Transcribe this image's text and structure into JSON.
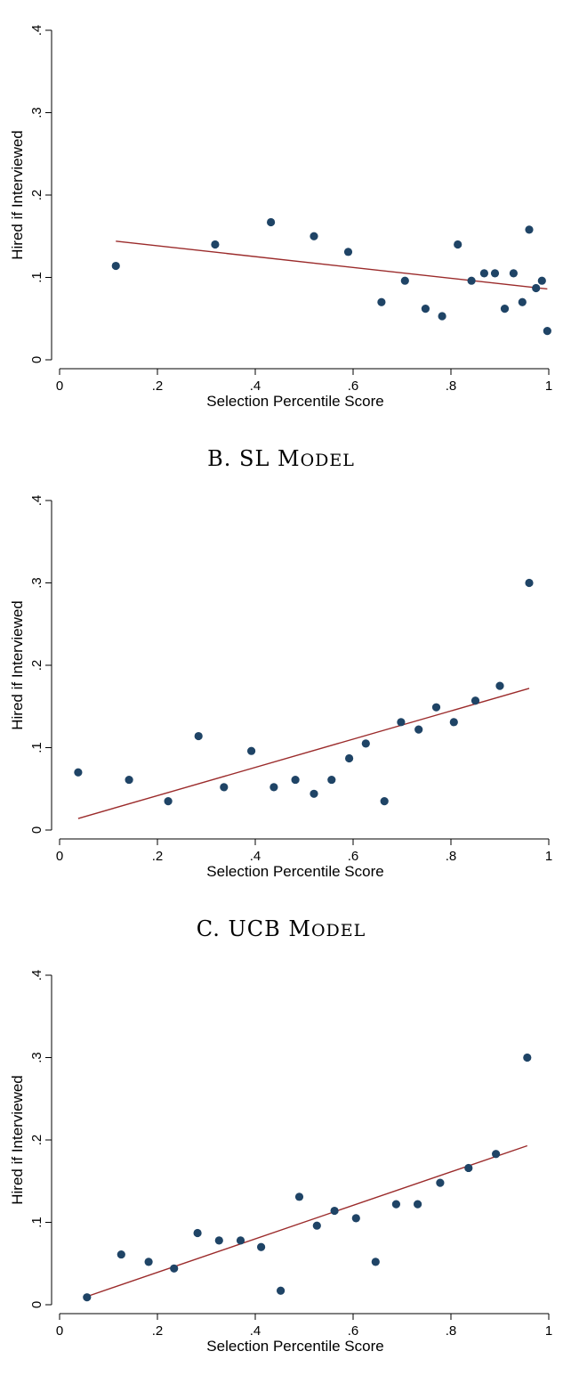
{
  "chart_data": [
    {
      "type": "scatter",
      "title": "",
      "xlabel": "Selection Percentile Score",
      "ylabel": "Hired if Interviewed",
      "xlim": [
        0,
        1
      ],
      "ylim": [
        0,
        0.4
      ],
      "x_ticks": [
        "0",
        ".2",
        ".4",
        ".6",
        ".8",
        "1"
      ],
      "y_ticks": [
        "0",
        ".1",
        ".2",
        ".3",
        ".4"
      ],
      "points": [
        [
          0.115,
          0.114
        ],
        [
          0.318,
          0.14
        ],
        [
          0.432,
          0.167
        ],
        [
          0.52,
          0.15
        ],
        [
          0.59,
          0.131
        ],
        [
          0.658,
          0.07
        ],
        [
          0.706,
          0.096
        ],
        [
          0.748,
          0.062
        ],
        [
          0.782,
          0.053
        ],
        [
          0.814,
          0.14
        ],
        [
          0.842,
          0.096
        ],
        [
          0.868,
          0.105
        ],
        [
          0.89,
          0.105
        ],
        [
          0.91,
          0.062
        ],
        [
          0.928,
          0.105
        ],
        [
          0.946,
          0.07
        ],
        [
          0.96,
          0.158
        ],
        [
          0.974,
          0.087
        ],
        [
          0.986,
          0.096
        ],
        [
          0.997,
          0.035
        ]
      ],
      "fit_line": {
        "x": [
          0.115,
          0.997
        ],
        "y": [
          0.144,
          0.086
        ]
      }
    },
    {
      "type": "scatter",
      "title": "B. SL Model",
      "xlabel": "Selection Percentile Score",
      "ylabel": "Hired if Interviewed",
      "xlim": [
        0,
        1
      ],
      "ylim": [
        0,
        0.4
      ],
      "x_ticks": [
        "0",
        ".2",
        ".4",
        ".6",
        ".8",
        "1"
      ],
      "y_ticks": [
        "0",
        ".1",
        ".2",
        ".3",
        ".4"
      ],
      "points": [
        [
          0.038,
          0.07
        ],
        [
          0.142,
          0.061
        ],
        [
          0.222,
          0.035
        ],
        [
          0.284,
          0.114
        ],
        [
          0.336,
          0.052
        ],
        [
          0.392,
          0.096
        ],
        [
          0.438,
          0.052
        ],
        [
          0.482,
          0.061
        ],
        [
          0.52,
          0.044
        ],
        [
          0.556,
          0.061
        ],
        [
          0.592,
          0.087
        ],
        [
          0.626,
          0.105
        ],
        [
          0.664,
          0.035
        ],
        [
          0.698,
          0.131
        ],
        [
          0.734,
          0.122
        ],
        [
          0.77,
          0.149
        ],
        [
          0.806,
          0.131
        ],
        [
          0.85,
          0.157
        ],
        [
          0.9,
          0.175
        ],
        [
          0.96,
          0.3
        ]
      ],
      "fit_line": {
        "x": [
          0.038,
          0.96
        ],
        "y": [
          0.014,
          0.172
        ]
      }
    },
    {
      "type": "scatter",
      "title": "C. UCB Model",
      "xlabel": "Selection Percentile Score",
      "ylabel": "Hired if Interviewed",
      "xlim": [
        0,
        1
      ],
      "ylim": [
        0,
        0.4
      ],
      "x_ticks": [
        "0",
        ".2",
        ".4",
        ".6",
        ".8",
        "1"
      ],
      "y_ticks": [
        "0",
        ".1",
        ".2",
        ".3",
        ".4"
      ],
      "points": [
        [
          0.056,
          0.009
        ],
        [
          0.126,
          0.061
        ],
        [
          0.182,
          0.052
        ],
        [
          0.234,
          0.044
        ],
        [
          0.282,
          0.087
        ],
        [
          0.326,
          0.078
        ],
        [
          0.37,
          0.078
        ],
        [
          0.412,
          0.07
        ],
        [
          0.452,
          0.017
        ],
        [
          0.49,
          0.131
        ],
        [
          0.526,
          0.096
        ],
        [
          0.562,
          0.114
        ],
        [
          0.606,
          0.105
        ],
        [
          0.646,
          0.052
        ],
        [
          0.688,
          0.122
        ],
        [
          0.732,
          0.122
        ],
        [
          0.778,
          0.148
        ],
        [
          0.836,
          0.166
        ],
        [
          0.892,
          0.183
        ],
        [
          0.956,
          0.3
        ]
      ],
      "fit_line": {
        "x": [
          0.056,
          0.956
        ],
        "y": [
          0.01,
          0.193
        ]
      }
    }
  ]
}
